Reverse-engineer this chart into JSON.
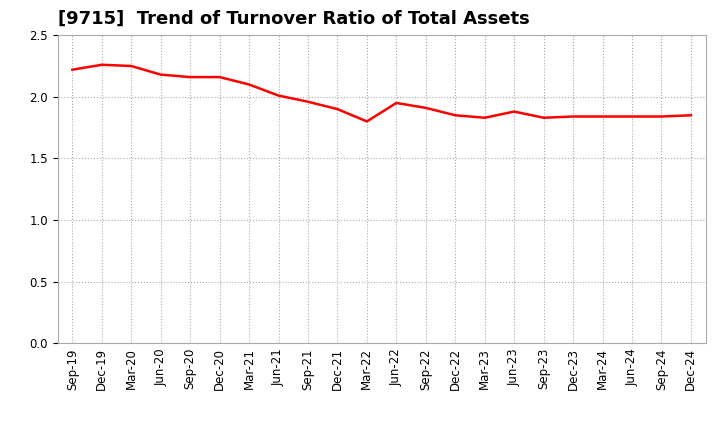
{
  "title": "[9715]  Trend of Turnover Ratio of Total Assets",
  "x_labels": [
    "Sep-19",
    "Dec-19",
    "Mar-20",
    "Jun-20",
    "Sep-20",
    "Dec-20",
    "Mar-21",
    "Jun-21",
    "Sep-21",
    "Dec-21",
    "Mar-22",
    "Jun-22",
    "Sep-22",
    "Dec-22",
    "Mar-23",
    "Jun-23",
    "Sep-23",
    "Dec-23",
    "Mar-24",
    "Jun-24",
    "Sep-24",
    "Dec-24"
  ],
  "values": [
    2.22,
    2.26,
    2.25,
    2.18,
    2.16,
    2.16,
    2.1,
    2.01,
    1.96,
    1.9,
    1.8,
    1.95,
    1.91,
    1.85,
    1.83,
    1.88,
    1.83,
    1.84,
    1.84,
    1.84,
    1.84,
    1.85
  ],
  "line_color": "#ff0000",
  "line_width": 1.8,
  "ylim": [
    0.0,
    2.5
  ],
  "yticks": [
    0.0,
    0.5,
    1.0,
    1.5,
    2.0,
    2.5
  ],
  "grid_color": "#aaaaaa",
  "background_color": "#ffffff",
  "title_fontsize": 13,
  "tick_fontsize": 8.5,
  "title_color": "#000000"
}
